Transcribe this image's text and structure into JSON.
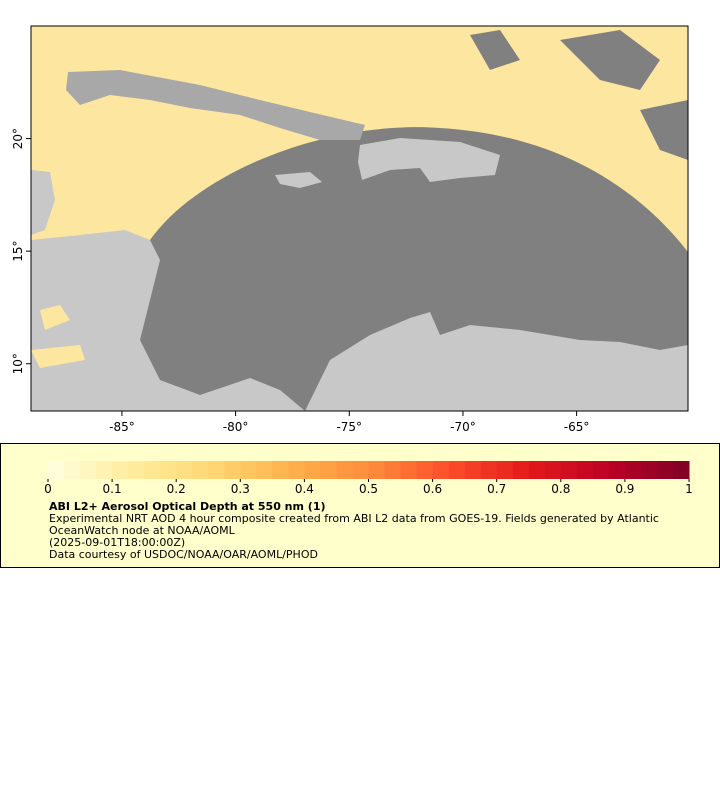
{
  "map": {
    "xlim": [
      -89,
      -60.1
    ],
    "ylim": [
      7.9,
      25
    ],
    "xticks": [
      {
        "value": -85,
        "label": "-85°"
      },
      {
        "value": -80,
        "label": "-80°"
      },
      {
        "value": -75,
        "label": "-75°"
      },
      {
        "value": -70,
        "label": "-70°"
      },
      {
        "value": -65,
        "label": "-65°"
      }
    ],
    "yticks": [
      {
        "value": 10,
        "label": "10°"
      },
      {
        "value": 15,
        "label": "15°"
      },
      {
        "value": 20,
        "label": "20°"
      }
    ]
  },
  "colorbar": {
    "range": [
      0,
      1
    ],
    "ticks": [
      0,
      0.1,
      0.2,
      0.3,
      0.4,
      0.5,
      0.6,
      0.7,
      0.8,
      0.9,
      1
    ],
    "colormap": [
      "#ffffe0",
      "#ffeda0",
      "#fed976",
      "#feb24c",
      "#fd8d3c",
      "#fc4e2a",
      "#e31a1c",
      "#bd0026",
      "#800026"
    ],
    "title": "ABI L2+ Aerosol Optical Depth at 550 nm (1)",
    "caption": [
      "Experimental NRT AOD 4 hour composite created from ABI L2 data from GOES-19. Fields generated by Atlantic OceanWatch node at NOAA/AOML",
      "(2025-09-01T18:00:00Z)",
      "Data courtesy of USDOC/NOAA/OAR/AOML/PHOD"
    ]
  }
}
